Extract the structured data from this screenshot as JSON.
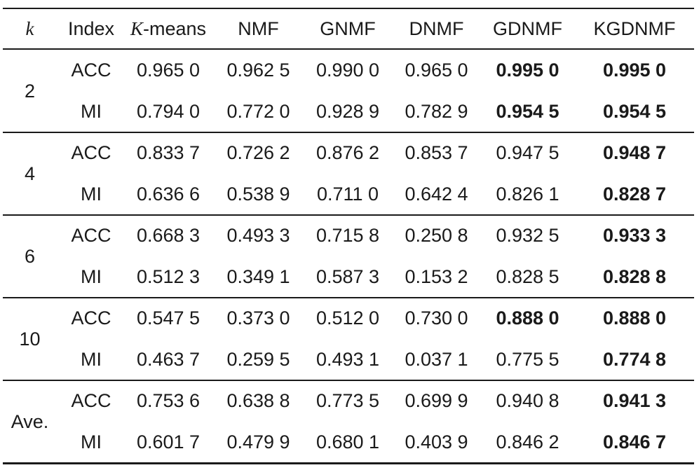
{
  "table": {
    "header": [
      {
        "text": "k"
      },
      {
        "text": "Index"
      },
      {
        "italic": "K",
        "text": "-means"
      },
      {
        "text": "NMF"
      },
      {
        "text": "GNMF"
      },
      {
        "text": "DNMF"
      },
      {
        "text": "GDNMF"
      },
      {
        "text": "KGDNMF"
      }
    ],
    "groups": [
      {
        "k": "2",
        "rows": [
          {
            "index": "ACC",
            "values": [
              "0.965 0",
              "0.962 5",
              "0.990 0",
              "0.965 0",
              "0.995 0",
              "0.995 0"
            ],
            "bold": [
              false,
              false,
              false,
              false,
              true,
              true
            ]
          },
          {
            "index": "MI",
            "values": [
              "0.794 0",
              "0.772 0",
              "0.928 9",
              "0.782 9",
              "0.954 5",
              "0.954 5"
            ],
            "bold": [
              false,
              false,
              false,
              false,
              true,
              true
            ]
          }
        ]
      },
      {
        "k": "4",
        "rows": [
          {
            "index": "ACC",
            "values": [
              "0.833 7",
              "0.726 2",
              "0.876 2",
              "0.853 7",
              "0.947 5",
              "0.948 7"
            ],
            "bold": [
              false,
              false,
              false,
              false,
              false,
              true
            ]
          },
          {
            "index": "MI",
            "values": [
              "0.636 6",
              "0.538 9",
              "0.711 0",
              "0.642 4",
              "0.826 1",
              "0.828 7"
            ],
            "bold": [
              false,
              false,
              false,
              false,
              false,
              true
            ]
          }
        ]
      },
      {
        "k": "6",
        "rows": [
          {
            "index": "ACC",
            "values": [
              "0.668 3",
              "0.493 3",
              "0.715 8",
              "0.250 8",
              "0.932 5",
              "0.933 3"
            ],
            "bold": [
              false,
              false,
              false,
              false,
              false,
              true
            ]
          },
          {
            "index": "MI",
            "values": [
              "0.512 3",
              "0.349 1",
              "0.587 3",
              "0.153 2",
              "0.828 5",
              "0.828 8"
            ],
            "bold": [
              false,
              false,
              false,
              false,
              false,
              true
            ]
          }
        ]
      },
      {
        "k": "10",
        "rows": [
          {
            "index": "ACC",
            "values": [
              "0.547 5",
              "0.373 0",
              "0.512 0",
              "0.730 0",
              "0.888 0",
              "0.888 0"
            ],
            "bold": [
              false,
              false,
              false,
              false,
              true,
              true
            ]
          },
          {
            "index": "MI",
            "values": [
              "0.463 7",
              "0.259 5",
              "0.493 1",
              "0.037 1",
              "0.775 5",
              "0.774 8"
            ],
            "bold": [
              false,
              false,
              false,
              false,
              false,
              true
            ]
          }
        ]
      },
      {
        "k": "Ave.",
        "rows": [
          {
            "index": "ACC",
            "values": [
              "0.753 6",
              "0.638 8",
              "0.773 5",
              "0.699 9",
              "0.940 8",
              "0.941 3"
            ],
            "bold": [
              false,
              false,
              false,
              false,
              false,
              true
            ]
          },
          {
            "index": "MI",
            "values": [
              "0.601 7",
              "0.479 9",
              "0.680 1",
              "0.403 9",
              "0.846 2",
              "0.846 7"
            ],
            "bold": [
              false,
              false,
              false,
              false,
              false,
              true
            ]
          }
        ]
      }
    ]
  }
}
